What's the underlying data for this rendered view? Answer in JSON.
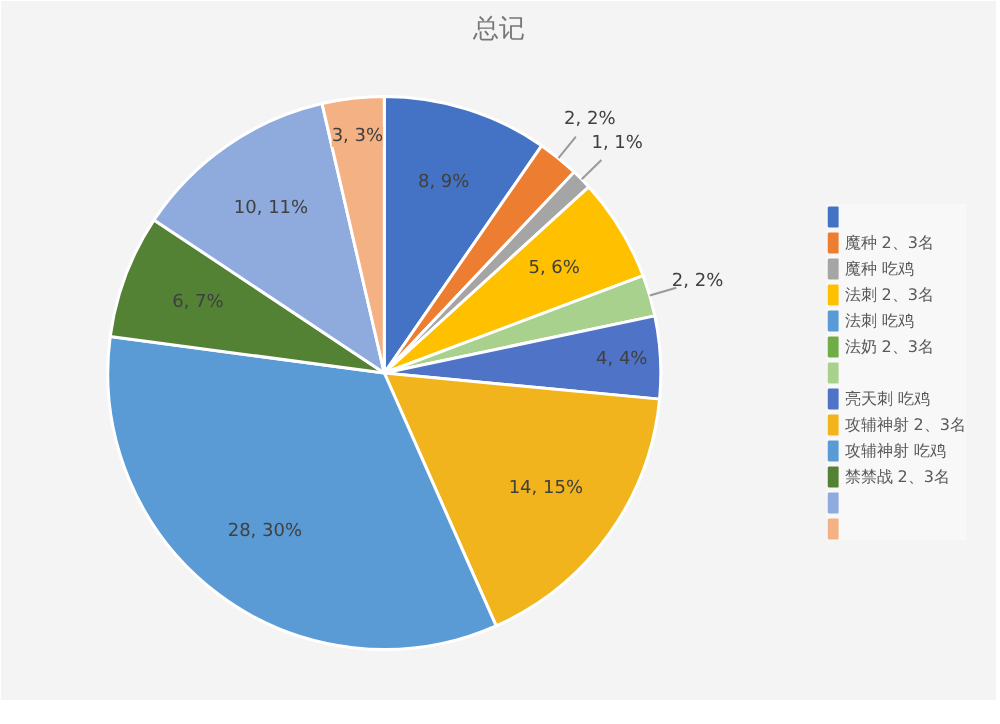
{
  "chart_data": {
    "type": "pie",
    "title": "总记",
    "categories": [
      null,
      "魔种 2、3名",
      "魔种 吃鸡",
      "法刺 2、3名",
      "法刺 吃鸡",
      "法奶 2、3名",
      null,
      null,
      "亮天刺 吃鸡",
      "攻辅神射 2、3名",
      "攻辅神射 吃鸡",
      "禁禁战 2、3名",
      null,
      null
    ],
    "values": [
      8,
      2,
      1,
      5,
      null,
      null,
      null,
      2,
      4,
      14,
      28,
      6,
      10,
      3
    ],
    "value_labels": [
      "8, 9%",
      "2, 2%",
      "1, 1%",
      "5, 6%",
      null,
      null,
      null,
      "2, 2%",
      "4, 4%",
      "14, 15%",
      "28, 30%",
      "6, 7%",
      "10, 11%",
      "3, 3%"
    ],
    "colors": [
      "#4472c4",
      "#ed7d31",
      "#a5a5a5",
      "#ffc000",
      "#5b9bd5",
      "#70ad47",
      "#264478",
      "#a9d18e",
      "#4f73c6",
      "#f2b41c",
      "#5b9bd5",
      "#548235",
      "#8faadc",
      "#f4b183"
    ],
    "legend": "right"
  }
}
